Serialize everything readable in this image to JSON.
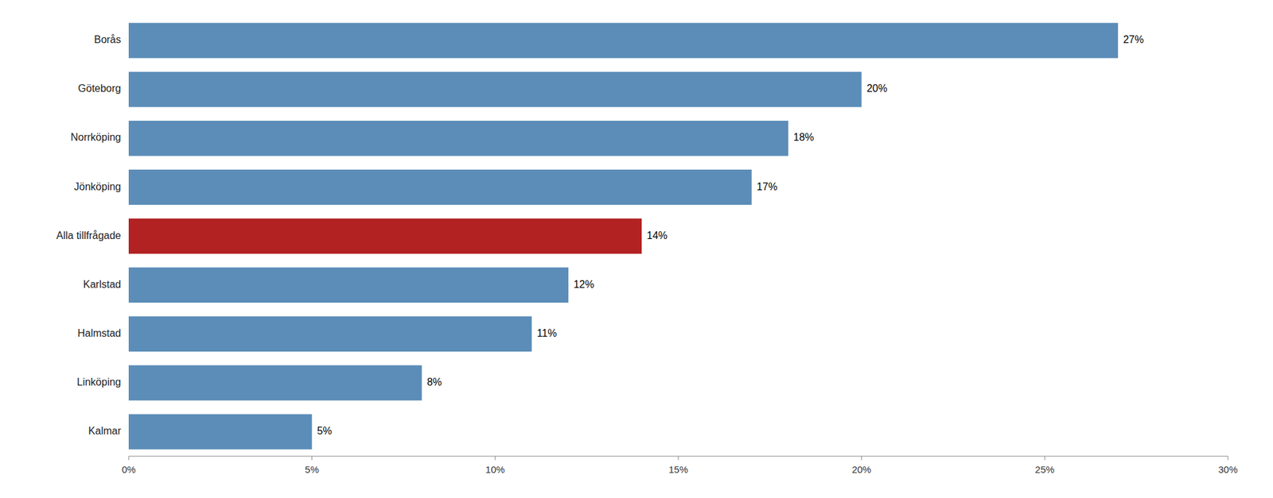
{
  "chart_data": {
    "type": "bar",
    "orientation": "horizontal",
    "categories": [
      "Borås",
      "Göteborg",
      "Norrköping",
      "Jönköping",
      "Alla tillfrågade",
      "Karlstad",
      "Halmstad",
      "Linköping",
      "Kalmar"
    ],
    "values": [
      27,
      20,
      18,
      17,
      14,
      12,
      11,
      8,
      5
    ],
    "value_labels": [
      "27%",
      "20%",
      "18%",
      "17%",
      "14%",
      "12%",
      "11%",
      "8%",
      "5%"
    ],
    "colors": [
      "#5b8db8",
      "#5b8db8",
      "#5b8db8",
      "#5b8db8",
      "#b22222",
      "#5b8db8",
      "#5b8db8",
      "#5b8db8",
      "#5b8db8"
    ],
    "xlim": [
      0,
      30
    ],
    "xticks": [
      {
        "value": 0,
        "label": "0%"
      },
      {
        "value": 5,
        "label": "5%"
      },
      {
        "value": 10,
        "label": "10%"
      },
      {
        "value": 15,
        "label": "15%"
      },
      {
        "value": 20,
        "label": "20%"
      },
      {
        "value": 25,
        "label": "25%"
      },
      {
        "value": 30,
        "label": "30%"
      }
    ],
    "data_labels": true,
    "grid": false
  }
}
